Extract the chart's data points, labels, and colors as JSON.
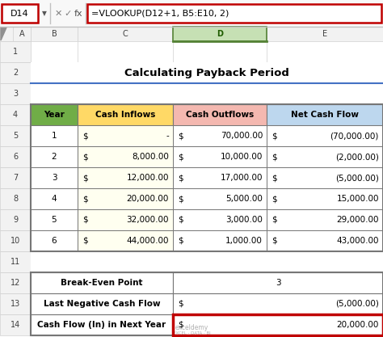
{
  "title": "Calculating Payback Period",
  "formula_bar_cell": "D14",
  "formula_bar_formula": "=VLOOKUP(D12+1, B5:E10, 2)",
  "col_headers": [
    "Year",
    "Cash Inflows",
    "Cash Outflows",
    "Net Cash Flow"
  ],
  "col_header_bg": [
    "#70ad47",
    "#ffd966",
    "#f4b8b0",
    "#bdd7ee"
  ],
  "rows": [
    [
      "1",
      "$",
      "-",
      "$",
      "70,000.00",
      "$",
      "(70,000.00)"
    ],
    [
      "2",
      "$",
      "8,000.00",
      "$",
      "10,000.00",
      "$",
      "(2,000.00)"
    ],
    [
      "3",
      "$",
      "12,000.00",
      "$",
      "17,000.00",
      "$",
      "(5,000.00)"
    ],
    [
      "4",
      "$",
      "20,000.00",
      "$",
      "5,000.00",
      "$",
      "15,000.00"
    ],
    [
      "5",
      "$",
      "32,000.00",
      "$",
      "3,000.00",
      "$",
      "29,000.00"
    ],
    [
      "6",
      "$",
      "44,000.00",
      "$",
      "1,000.00",
      "$",
      "43,000.00"
    ]
  ],
  "summary_rows": [
    {
      "label": "Break-Even Point",
      "dollar": "",
      "value": "3",
      "highlighted": false
    },
    {
      "label": "Last Negative Cash Flow",
      "dollar": "$",
      "value": "(5,000.00)",
      "highlighted": false
    },
    {
      "label": "Cash Flow (In) in Next Year",
      "dollar": "$",
      "value": "20,000.00",
      "highlighted": true
    }
  ],
  "excel_bg": "#ffffff",
  "col_header_area_bg": "#f2f2f2",
  "row_header_bg": "#f2f2f2",
  "selected_col_bg": "#e2efda",
  "grid_color": "#d0d0d0",
  "border_color": "#767676",
  "title_underline_color": "#4472c4",
  "highlight_border_color": "#c00000",
  "formula_bar_bg": "#f8f8f8",
  "watermark_color": "#b0b0b0",
  "col_letter_selected_bg": "#c6e0b4",
  "col_letter_selected_border": "#548235"
}
